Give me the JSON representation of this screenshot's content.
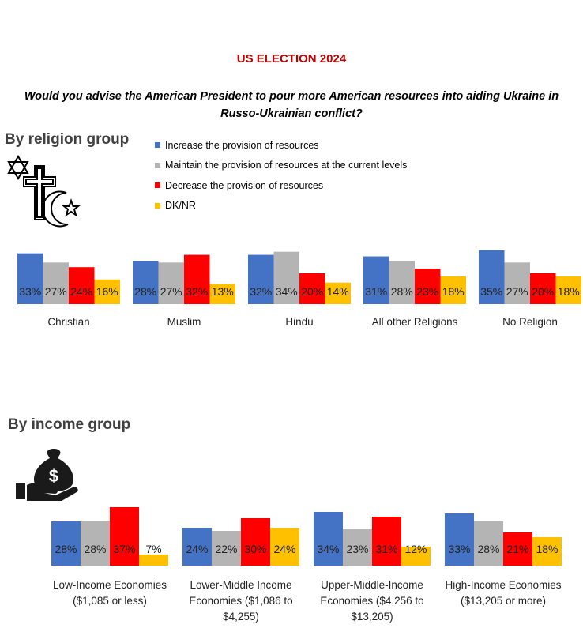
{
  "header": {
    "title": "US ELECTION 2024",
    "question": "Would you advise the American President to pour more American resources into aiding Ukraine in Russo-Ukrainian conflict?"
  },
  "sections": {
    "religion_heading": "By religion group",
    "income_heading": "By income group"
  },
  "legend": [
    {
      "label": "Increase the provision of resources",
      "color": "#4472c4"
    },
    {
      "label": "Maintain the provision of resources at the current levels",
      "color": "#b4b4b4"
    },
    {
      "label": "Decrease the provision of resources",
      "color": "#ff0000"
    },
    {
      "label": "DK/NR",
      "color": "#ffc000"
    }
  ],
  "icons": {
    "religion": "religion-symbols-icon",
    "income": "money-bag-hand-icon"
  },
  "chart_data": [
    {
      "type": "bar",
      "categories": [
        "Christian",
        "Muslim",
        "Hindu",
        "All other Religions",
        "No Religion"
      ],
      "series": [
        {
          "name": "Increase the provision of resources",
          "values": [
            33,
            28,
            32,
            31,
            35
          ]
        },
        {
          "name": "Maintain the provision of resources at the current levels",
          "values": [
            27,
            27,
            34,
            28,
            27
          ]
        },
        {
          "name": "Decrease the provision of resources",
          "values": [
            24,
            32,
            20,
            23,
            20
          ]
        },
        {
          "name": "DK/NR",
          "values": [
            16,
            13,
            14,
            18,
            18
          ]
        }
      ],
      "value_suffix": "%",
      "legend_position": "top-right",
      "grid": false
    },
    {
      "type": "bar",
      "categories": [
        [
          "Low-Income Economies",
          "($1,085 or less)"
        ],
        [
          "Lower-Middle Income",
          "Economies ($1,086 to",
          "$4,255)"
        ],
        [
          "Upper-Middle-Income",
          "Economies ($4,256 to",
          "$13,205)"
        ],
        [
          "High-Income Economies",
          "($13,205 or more)"
        ]
      ],
      "series": [
        {
          "name": "Increase the provision of resources",
          "values": [
            28,
            24,
            34,
            33
          ]
        },
        {
          "name": "Maintain the provision of resources at the current levels",
          "values": [
            28,
            22,
            23,
            28
          ]
        },
        {
          "name": "Decrease the provision of resources",
          "values": [
            37,
            30,
            31,
            21
          ]
        },
        {
          "name": "DK/NR",
          "values": [
            7,
            24,
            12,
            18
          ]
        }
      ],
      "value_suffix": "%",
      "grid": false
    }
  ]
}
